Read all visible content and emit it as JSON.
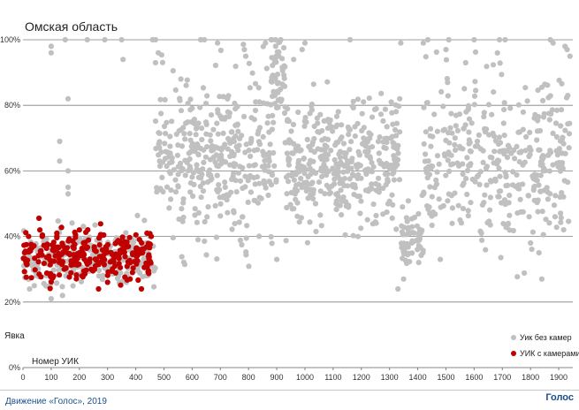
{
  "chart_data": {
    "type": "scatter",
    "title": "Омская область",
    "xlabel": "Номер УИК",
    "ylabel": "Явка",
    "xlim": [
      0,
      1950
    ],
    "ylim": [
      0,
      100
    ],
    "x_ticks": [
      "0",
      "100",
      "200",
      "300",
      "400",
      "500",
      "600",
      "700",
      "800",
      "900",
      "1000",
      "1100",
      "1200",
      "1300",
      "1400",
      "1500",
      "1600",
      "1700",
      "1800",
      "1900"
    ],
    "y_ticks": [
      "0%",
      "20%",
      "40%",
      "60%",
      "80%",
      "100%"
    ],
    "grid": true,
    "legend_position": "bottom-right",
    "series": [
      {
        "name": "Уик без камер",
        "color": "#c0c0c0",
        "regions": [
          {
            "x_range": [
              1,
              470
            ],
            "center": 33,
            "spread": 4.5,
            "count": 240
          },
          {
            "x_range": [
              470,
              900
            ],
            "center": 63,
            "spread": 12,
            "count": 380
          },
          {
            "x_range": [
              880,
              930
            ],
            "center": 88,
            "spread": 7,
            "count": 50
          },
          {
            "x_range": [
              930,
              1340
            ],
            "center": 62,
            "spread": 9,
            "count": 400
          },
          {
            "x_range": [
              1340,
              1420
            ],
            "center": 40,
            "spread": 5,
            "count": 60
          },
          {
            "x_range": [
              1420,
              1940
            ],
            "center": 64,
            "spread": 13,
            "count": 380
          }
        ],
        "points": [
          [
            100,
            96
          ],
          [
            100,
            98
          ],
          [
            150,
            100
          ],
          [
            228,
            100
          ],
          [
            290,
            100
          ],
          [
            350,
            100
          ],
          [
            355,
            94
          ],
          [
            460,
            100
          ],
          [
            470,
            100
          ],
          [
            470,
            93
          ],
          [
            480,
            96
          ],
          [
            160,
            82
          ],
          [
            160,
            60
          ],
          [
            160,
            55
          ],
          [
            160,
            53
          ],
          [
            130,
            69
          ],
          [
            130,
            63
          ],
          [
            100,
            21
          ],
          [
            40,
            25
          ],
          [
            140,
            22
          ],
          [
            630,
            100
          ],
          [
            560,
            88
          ],
          [
            690,
            99
          ],
          [
            785,
            97
          ],
          [
            790,
            95
          ],
          [
            860,
            99
          ],
          [
            880,
            100
          ],
          [
            960,
            94
          ],
          [
            990,
            97
          ],
          [
            1000,
            99
          ],
          [
            1160,
            100
          ],
          [
            1340,
            99
          ],
          [
            1420,
            99
          ],
          [
            1500,
            97
          ],
          [
            1510,
            100
          ],
          [
            1570,
            93
          ],
          [
            1600,
            100
          ],
          [
            1690,
            100
          ],
          [
            1710,
            100
          ],
          [
            1870,
            100
          ],
          [
            1880,
            99
          ],
          [
            1930,
            97
          ],
          [
            1940,
            95
          ],
          [
            1350,
            27
          ],
          [
            1480,
            33
          ],
          [
            1550,
            45
          ],
          [
            1800,
            38
          ],
          [
            1830,
            35
          ],
          [
            1840,
            27
          ],
          [
            900,
            33
          ],
          [
            1330,
            24
          ]
        ]
      },
      {
        "name": "УИК с камерами",
        "color": "#c00000",
        "regions": [
          {
            "x_range": [
              1,
              455
            ],
            "center": 34,
            "spread": 3.5,
            "count": 260
          }
        ],
        "points": [
          [
            268,
            24
          ],
          [
            420,
            24
          ],
          [
            300,
            26
          ],
          [
            380,
            27
          ],
          [
            440,
            41
          ],
          [
            455,
            40
          ],
          [
            20,
            40
          ],
          [
            60,
            42
          ],
          [
            200,
            42
          ],
          [
            120,
            41
          ]
        ]
      }
    ]
  },
  "footer": {
    "left": "Движение «Голос», 2019",
    "logo": "Голос"
  }
}
